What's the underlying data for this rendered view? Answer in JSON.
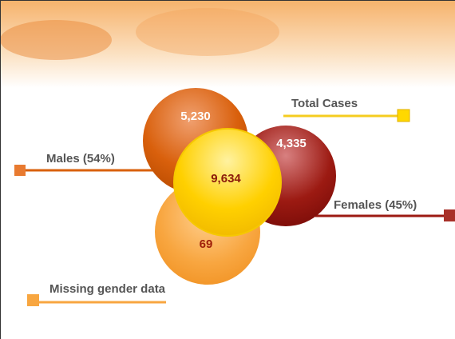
{
  "nodes": [
    {
      "label": "Males (54%)",
      "value": "5,230"
    },
    {
      "label": "Females (45%)",
      "value": "4,335"
    },
    {
      "label": "Missing gender data",
      "value": "69"
    },
    {
      "label": "Total Cases",
      "value": "9,634"
    }
  ]
}
